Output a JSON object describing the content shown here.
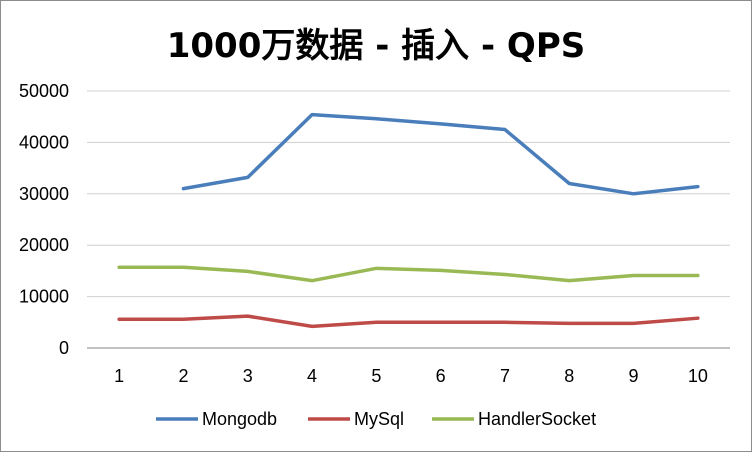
{
  "chart_data": {
    "type": "line",
    "title": "1000万数据 - 插入 - QPS",
    "x": [
      1,
      2,
      3,
      4,
      5,
      6,
      7,
      8,
      9,
      10
    ],
    "ylim": [
      0,
      50000
    ],
    "yticks": [
      0,
      10000,
      20000,
      30000,
      40000,
      50000
    ],
    "grid": true,
    "legend": "bottom",
    "series": [
      {
        "name": "Mongodb",
        "color": "#4a7ebb",
        "values": [
          null,
          31000,
          33200,
          45400,
          44600,
          43600,
          42500,
          32000,
          30000,
          31400
        ]
      },
      {
        "name": "MySql",
        "color": "#be4b48",
        "values": [
          5600,
          5600,
          6200,
          4200,
          5000,
          5000,
          5000,
          4800,
          4800,
          5800
        ]
      },
      {
        "name": "HandlerSocket",
        "color": "#98b954",
        "values": [
          15700,
          15700,
          14900,
          13100,
          15500,
          15100,
          14300,
          13100,
          14100,
          14100
        ]
      }
    ]
  }
}
